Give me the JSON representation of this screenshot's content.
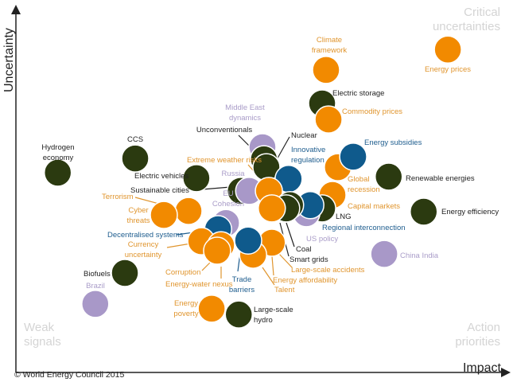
{
  "chart_data": {
    "type": "scatter",
    "title": "",
    "xlabel": "Impact",
    "ylabel": "Uncertainty",
    "xlim": [
      0,
      100
    ],
    "ylim": [
      0,
      100
    ],
    "grid": false,
    "legend": "none",
    "quadrant_labels": {
      "top_right": "Critical uncertainties",
      "bottom_left": "Weak signals",
      "bottom_right": "Action priorities"
    },
    "colors": {
      "orange": "#F28A00",
      "dark": "#2B3A10",
      "blue": "#0F5A8C",
      "purple": "#A898C8"
    },
    "label_colors": {
      "orange": "#E0952E",
      "dark": "#222222",
      "blue": "#1E5D8E",
      "purple": "#A99CC8"
    },
    "points": [
      {
        "name": "Climate framework",
        "group": "orange",
        "impact": 62.9,
        "uncertainty": 83.0
      },
      {
        "name": "Energy prices",
        "group": "orange",
        "impact": 87.6,
        "uncertainty": 88.6
      },
      {
        "name": "Electric storage",
        "group": "dark",
        "impact": 62.1,
        "uncertainty": 73.8
      },
      {
        "name": "Commodity prices",
        "group": "orange",
        "impact": 63.4,
        "uncertainty": 69.4
      },
      {
        "name": "Middle East dynamics",
        "group": "purple",
        "impact": 50.0,
        "uncertainty": 61.8
      },
      {
        "name": "Unconventionals",
        "group": "dark",
        "impact": 50.3,
        "uncertainty": 58.5
      },
      {
        "name": "Nuclear",
        "group": "dark",
        "impact": 50.8,
        "uncertainty": 56.3
      },
      {
        "name": "Innovative regulation",
        "group": "blue",
        "impact": 55.3,
        "uncertainty": 53.1
      },
      {
        "name": "Global recession",
        "group": "orange",
        "impact": 65.3,
        "uncertainty": 56.3
      },
      {
        "name": "Energy subsidies",
        "group": "blue",
        "impact": 68.4,
        "uncertainty": 59.2
      },
      {
        "name": "Renewable energies",
        "group": "dark",
        "impact": 75.6,
        "uncertainty": 53.7
      },
      {
        "name": "Hydrogen economy",
        "group": "dark",
        "impact": 8.5,
        "uncertainty": 54.8
      },
      {
        "name": "CCS",
        "group": "dark",
        "impact": 24.2,
        "uncertainty": 58.7
      },
      {
        "name": "Electric vehicles",
        "group": "dark",
        "impact": 36.6,
        "uncertainty": 53.3
      },
      {
        "name": "Sustainable cities",
        "group": "dark",
        "impact": 45.6,
        "uncertainty": 49.8
      },
      {
        "name": "Russia",
        "group": "purple",
        "impact": 47.3,
        "uncertainty": 49.8
      },
      {
        "name": "Extreme weather risks",
        "group": "orange",
        "impact": 51.3,
        "uncertainty": 49.8
      },
      {
        "name": "EU Cohesion",
        "group": "purple",
        "impact": 42.6,
        "uncertainty": 41.0
      },
      {
        "name": "Terrorism",
        "group": "orange",
        "impact": 35.0,
        "uncertainty": 44.3
      },
      {
        "name": "Cyber threats",
        "group": "orange",
        "impact": 30.0,
        "uncertainty": 43.2
      },
      {
        "name": "Capital markets",
        "group": "orange",
        "impact": 64.2,
        "uncertainty": 48.7
      },
      {
        "name": "Energy efficiency",
        "group": "dark",
        "impact": 82.7,
        "uncertainty": 44.1
      },
      {
        "name": "LNG",
        "group": "dark",
        "impact": 62.1,
        "uncertainty": 45.0
      },
      {
        "name": "US policy",
        "group": "purple",
        "impact": 58.9,
        "uncertainty": 43.7
      },
      {
        "name": "Regional interconnection",
        "group": "blue",
        "impact": 59.7,
        "uncertainty": 45.9
      },
      {
        "name": "Coal",
        "group": "dark",
        "impact": 55.6,
        "uncertainty": 45.9
      },
      {
        "name": "Smart grids",
        "group": "dark",
        "impact": 54.8,
        "uncertainty": 45.0
      },
      {
        "name": "Large-scale accidents",
        "group": "orange",
        "impact": 51.9,
        "uncertainty": 45.0
      },
      {
        "name": "Decentralised systems",
        "group": "blue",
        "impact": 41.0,
        "uncertainty": 39.3
      },
      {
        "name": "Currency uncertainty",
        "group": "orange",
        "impact": 37.6,
        "uncertainty": 36.0
      },
      {
        "name": "Energy-water nexus",
        "group": "orange",
        "impact": 41.6,
        "uncertainty": 34.9
      },
      {
        "name": "Corruption",
        "group": "orange",
        "impact": 40.8,
        "uncertainty": 33.4
      },
      {
        "name": "Energy affordability",
        "group": "orange",
        "impact": 51.9,
        "uncertainty": 35.6
      },
      {
        "name": "Talent",
        "group": "orange",
        "impact": 48.1,
        "uncertainty": 32.3
      },
      {
        "name": "Trade barriers",
        "group": "blue",
        "impact": 47.1,
        "uncertainty": 36.2
      },
      {
        "name": "China India",
        "group": "purple",
        "impact": 74.7,
        "uncertainty": 32.5
      },
      {
        "name": "Biofuels",
        "group": "dark",
        "impact": 22.1,
        "uncertainty": 27.3
      },
      {
        "name": "Brazil",
        "group": "purple",
        "impact": 16.1,
        "uncertainty": 18.8
      },
      {
        "name": "Energy poverty",
        "group": "orange",
        "impact": 39.7,
        "uncertainty": 17.5
      },
      {
        "name": "Large-scale hydro",
        "group": "dark",
        "impact": 45.2,
        "uncertainty": 15.9
      }
    ]
  },
  "footer": {
    "copyright": "© World Energy Council 2015"
  }
}
